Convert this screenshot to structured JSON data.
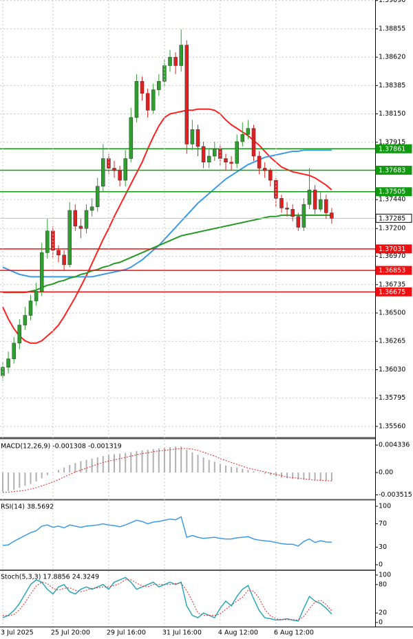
{
  "chart_data": [
    {
      "type": "candlestick",
      "categories": [
        "3 Jul 2025",
        null,
        null,
        null,
        null,
        null,
        null,
        null,
        null,
        "25 Jul 20:00",
        null,
        null,
        null,
        null,
        null,
        null,
        null,
        null,
        null,
        "29 Jul 16:00",
        null,
        null,
        null,
        null,
        null,
        null,
        null,
        null,
        null,
        "31 Jul 16:00",
        null,
        null,
        null,
        null,
        null,
        null,
        null,
        null,
        null,
        "4 Aug 12:00",
        null,
        null,
        null,
        null,
        null,
        null,
        null,
        null,
        null,
        "6 Aug 12:00",
        null,
        null,
        null,
        null,
        null,
        null,
        null,
        null,
        null,
        null
      ],
      "open": [
        1.3598,
        1.3605,
        1.3612,
        1.3625,
        1.364,
        1.3648,
        1.366,
        1.3668,
        1.37,
        1.3718,
        1.3702,
        1.3698,
        1.369,
        1.3735,
        1.3722,
        1.372,
        1.3735,
        1.3738,
        1.3755,
        1.3778,
        1.377,
        1.3768,
        1.376,
        1.3778,
        1.3812,
        1.3842,
        1.3832,
        1.3818,
        1.3835,
        1.3842,
        1.3855,
        1.3862,
        1.3855,
        1.3872,
        1.379,
        1.3802,
        1.3788,
        1.3775,
        1.378,
        1.3786,
        1.3778,
        1.3775,
        1.3774,
        1.3792,
        1.3798,
        1.3803,
        1.378,
        1.377,
        1.3768,
        1.376,
        1.3745,
        1.3737,
        1.3736,
        1.373,
        1.3721,
        1.374,
        1.3752,
        1.3736,
        1.3744,
        1.3733
      ],
      "high": [
        1.361,
        1.3618,
        1.363,
        1.3645,
        1.3655,
        1.3665,
        1.3675,
        1.3708,
        1.3728,
        1.3722,
        1.3706,
        1.3702,
        1.3742,
        1.374,
        1.3728,
        1.374,
        1.3745,
        1.3762,
        1.379,
        1.3782,
        1.3776,
        1.3772,
        1.3785,
        1.382,
        1.3848,
        1.3846,
        1.3836,
        1.384,
        1.3848,
        1.386,
        1.3868,
        1.3866,
        1.3885,
        1.3876,
        1.381,
        1.3806,
        1.3792,
        1.3786,
        1.3792,
        1.379,
        1.3782,
        1.378,
        1.3798,
        1.3808,
        1.381,
        1.3806,
        1.3784,
        1.3775,
        1.377,
        1.3762,
        1.3748,
        1.3742,
        1.374,
        1.3733,
        1.3745,
        1.377,
        1.3756,
        1.375,
        1.3748,
        1.3737
      ],
      "low": [
        1.3594,
        1.36,
        1.3608,
        1.362,
        1.3636,
        1.3644,
        1.3656,
        1.3664,
        1.3695,
        1.3696,
        1.3692,
        1.3685,
        1.3688,
        1.3718,
        1.3712,
        1.3716,
        1.373,
        1.3734,
        1.375,
        1.3765,
        1.3762,
        1.3755,
        1.3755,
        1.3775,
        1.3808,
        1.3826,
        1.3812,
        1.3815,
        1.383,
        1.3838,
        1.385,
        1.3848,
        1.385,
        1.3782,
        1.3785,
        1.378,
        1.377,
        1.377,
        1.3776,
        1.3772,
        1.3768,
        1.3768,
        1.377,
        1.3788,
        1.3794,
        1.3776,
        1.3765,
        1.3762,
        1.3755,
        1.3738,
        1.3733,
        1.373,
        1.3726,
        1.3718,
        1.3718,
        1.3736,
        1.3732,
        1.3734,
        1.3728,
        1.3724
      ],
      "close": [
        1.3605,
        1.3612,
        1.3625,
        1.364,
        1.3648,
        1.366,
        1.3668,
        1.37,
        1.3718,
        1.3702,
        1.3698,
        1.369,
        1.3735,
        1.3722,
        1.372,
        1.3735,
        1.3738,
        1.3755,
        1.3778,
        1.377,
        1.3768,
        1.376,
        1.3778,
        1.3812,
        1.3842,
        1.3832,
        1.3818,
        1.3835,
        1.3842,
        1.3855,
        1.3862,
        1.3855,
        1.3872,
        1.379,
        1.3802,
        1.3788,
        1.3775,
        1.378,
        1.3786,
        1.3778,
        1.3775,
        1.3774,
        1.3792,
        1.3798,
        1.3803,
        1.378,
        1.377,
        1.3768,
        1.376,
        1.3745,
        1.3737,
        1.3736,
        1.373,
        1.3721,
        1.374,
        1.3752,
        1.3736,
        1.3744,
        1.3733,
        1.37285
      ],
      "up_color": "#2e9e2e",
      "down_color": "#e02020",
      "series": [
        {
          "color": "#ff2020",
          "values": [
            1.3655,
            1.3645,
            1.3637,
            1.3631,
            1.3627,
            1.3625,
            1.3625,
            1.3627,
            1.3631,
            1.3635,
            1.364,
            1.3647,
            1.3655,
            1.3663,
            1.3672,
            1.3681,
            1.3691,
            1.3701,
            1.3711,
            1.372,
            1.373,
            1.3739,
            1.3748,
            1.3757,
            1.3766,
            1.3775,
            1.3786,
            1.3796,
            1.3805,
            1.3812,
            1.3815,
            1.3816,
            1.3817,
            1.3818,
            1.3818,
            1.3819,
            1.3819,
            1.3819,
            1.3818,
            1.3815,
            1.381,
            1.3806,
            1.3803,
            1.38,
            1.3797,
            1.3793,
            1.3789,
            1.3784,
            1.3779,
            1.3775,
            1.3771,
            1.3769,
            1.3767,
            1.3766,
            1.3765,
            1.3764,
            1.3762,
            1.3759,
            1.3756,
            1.3752
          ]
        },
        {
          "color": "#3a9ae8",
          "values": [
            1.3688,
            1.3686,
            1.3684,
            1.3682,
            1.3681,
            1.368,
            1.368,
            1.368,
            1.368,
            1.368,
            1.368,
            1.368,
            1.368,
            1.368,
            1.368,
            1.368,
            1.368,
            1.3681,
            1.3682,
            1.3683,
            1.3684,
            1.3685,
            1.3686,
            1.3688,
            1.3691,
            1.3694,
            1.3698,
            1.3702,
            1.3706,
            1.3711,
            1.3716,
            1.3721,
            1.3726,
            1.3731,
            1.3736,
            1.3741,
            1.3745,
            1.3749,
            1.3753,
            1.3757,
            1.3761,
            1.3764,
            1.3767,
            1.377,
            1.3773,
            1.3775,
            1.3777,
            1.3779,
            1.378,
            1.3781,
            1.3782,
            1.3783,
            1.3784,
            1.3784,
            1.3785,
            1.3785,
            1.3785,
            1.3785,
            1.3785,
            1.3785
          ]
        },
        {
          "color": "#229922",
          "values": [
            1.3667,
            1.3667,
            1.3667,
            1.3667,
            1.3667,
            1.3668,
            1.3669,
            1.3671,
            1.3673,
            1.3674,
            1.3676,
            1.3677,
            1.3679,
            1.368,
            1.3682,
            1.3683,
            1.3685,
            1.3686,
            1.3688,
            1.3689,
            1.3691,
            1.3692,
            1.3694,
            1.3696,
            1.3698,
            1.37,
            1.3702,
            1.3704,
            1.3706,
            1.3708,
            1.371,
            1.3712,
            1.3714,
            1.3715,
            1.3716,
            1.3717,
            1.3718,
            1.3719,
            1.372,
            1.3721,
            1.3722,
            1.3723,
            1.3724,
            1.3725,
            1.3726,
            1.3727,
            1.3728,
            1.3729,
            1.373,
            1.373,
            1.3731,
            1.3731,
            1.3731,
            1.3731,
            1.3731,
            1.3731,
            1.3731,
            1.3731,
            1.3731,
            1.3731
          ]
        }
      ],
      "levels": [
        {
          "value": 1.37861,
          "color": "#119911"
        },
        {
          "value": 1.37683,
          "color": "#119911"
        },
        {
          "value": 1.37505,
          "color": "#119911"
        },
        {
          "value": 1.37285,
          "color": "#c0c0c0"
        },
        {
          "value": 1.37031,
          "color": "#ee1111"
        },
        {
          "value": 1.36853,
          "color": "#ee1111"
        },
        {
          "value": 1.36675,
          "color": "#ee1111"
        }
      ],
      "ylim": [
        1.35474,
        1.39094
      ],
      "yticks": [
        {
          "value": 1.3909,
          "label": "1.39090"
        },
        1.38855,
        {
          "value": 1.3862,
          "label": "1.38620"
        },
        1.38385,
        {
          "value": 1.3815,
          "label": "1.38150"
        },
        1.37915,
        {
          "value": 1.3744,
          "label": "1.37440"
        },
        {
          "value": 1.372,
          "label": "1.37200"
        },
        {
          "value": 1.3697,
          "label": "1.36970"
        },
        1.36735,
        {
          "value": 1.365,
          "label": "1.36500"
        },
        1.36265,
        {
          "value": 1.3603,
          "label": "1.36030"
        },
        1.35795,
        {
          "value": 1.3556,
          "label": "1.35560"
        }
      ],
      "grid": true
    },
    {
      "type": "macd",
      "title": "MACD(12,26,9) -0.001308 -0.001319",
      "series": [
        {
          "style": "histogram",
          "color": "#b0b0b0",
          "values": [
            -0.003,
            -0.0029,
            -0.0027,
            -0.0024,
            -0.0021,
            -0.0018,
            -0.0014,
            -0.0009,
            -0.0004,
            0.0,
            0.0004,
            0.0008,
            0.0012,
            0.0015,
            0.0018,
            0.002,
            0.0022,
            0.0024,
            0.0026,
            0.0028,
            0.0029,
            0.003,
            0.0031,
            0.0032,
            0.0034,
            0.0035,
            0.0036,
            0.0037,
            0.0038,
            0.0039,
            0.004,
            0.0041,
            0.0041,
            0.0036,
            0.0032,
            0.0028,
            0.0024,
            0.002,
            0.0017,
            0.0014,
            0.0011,
            0.0009,
            0.0008,
            0.0006,
            0.0004,
            0.0002,
            0.0,
            -0.0002,
            -0.0004,
            -0.0006,
            -0.0008,
            -0.0009,
            -0.001,
            -0.0011,
            -0.0011,
            -0.0011,
            -0.0012,
            -0.0013,
            -0.0013,
            -0.001308
          ]
        },
        {
          "style": "dotted",
          "color": "#ee2222",
          "values": [
            -0.0031,
            -0.0031,
            -0.003,
            -0.0029,
            -0.0028,
            -0.0026,
            -0.0024,
            -0.0021,
            -0.0018,
            -0.0015,
            -0.0011,
            -0.0007,
            -0.0003,
            0.0001,
            0.0004,
            0.0007,
            0.001,
            0.0013,
            0.0016,
            0.0018,
            0.002,
            0.0022,
            0.0024,
            0.0026,
            0.0028,
            0.003,
            0.0031,
            0.0033,
            0.0034,
            0.0035,
            0.0036,
            0.0037,
            0.0038,
            0.0038,
            0.0037,
            0.0035,
            0.0032,
            0.0029,
            0.0026,
            0.0022,
            0.0019,
            0.0016,
            0.0013,
            0.001,
            0.0007,
            0.0005,
            0.0003,
            0.0001,
            -0.0001,
            -0.0003,
            -0.0005,
            -0.0007,
            -0.0008,
            -0.0009,
            -0.001,
            -0.0011,
            -0.0012,
            -0.0012,
            -0.0013,
            -0.001319
          ]
        }
      ],
      "ylim": [
        -0.00412,
        0.0051
      ],
      "yticks": [
        0.004336,
        {
          "value": 0,
          "label": "0.00"
        },
        -0.003515
      ]
    },
    {
      "type": "line",
      "title": "RSI(14) 38.5692",
      "series": [
        {
          "style": "solid",
          "color": "#3a9ae8",
          "values": [
            33,
            34,
            40,
            45,
            50,
            55,
            58,
            66,
            68,
            64,
            66,
            63,
            68,
            66,
            64,
            66,
            67,
            68,
            70,
            68,
            67,
            65,
            68,
            72,
            76,
            74,
            70,
            73,
            74,
            76,
            78,
            77,
            82,
            47,
            50,
            47,
            45,
            46,
            47,
            45,
            44,
            44,
            46,
            47,
            48,
            44,
            42,
            41,
            40,
            38,
            36,
            35,
            35,
            32,
            40,
            44,
            38,
            41,
            39,
            38.5692
          ]
        }
      ],
      "ylim": [
        -8.2,
        109.4
      ],
      "yticks": [
        100,
        70,
        30,
        0
      ]
    },
    {
      "type": "line",
      "title": "Stoch(5,3,3) 17.8856 24.3249",
      "series": [
        {
          "style": "solid",
          "color": "#2aa8b8",
          "values": [
            10,
            15,
            25,
            40,
            60,
            80,
            90,
            85,
            70,
            60,
            75,
            80,
            65,
            60,
            70,
            75,
            70,
            75,
            80,
            70,
            85,
            90,
            95,
            85,
            70,
            75,
            80,
            85,
            75,
            80,
            85,
            80,
            85,
            35,
            15,
            10,
            20,
            15,
            10,
            30,
            45,
            35,
            55,
            70,
            78,
            50,
            25,
            10,
            8,
            5,
            6,
            8,
            5,
            3,
            30,
            55,
            45,
            40,
            30,
            17.8856
          ]
        },
        {
          "style": "dotted",
          "color": "#ee2222",
          "values": [
            15,
            14,
            17,
            27,
            42,
            60,
            77,
            85,
            82,
            72,
            68,
            72,
            73,
            68,
            65,
            68,
            72,
            73,
            75,
            75,
            78,
            82,
            90,
            90,
            83,
            77,
            75,
            80,
            80,
            80,
            80,
            82,
            83,
            67,
            45,
            20,
            15,
            15,
            15,
            18,
            28,
            37,
            45,
            53,
            68,
            66,
            51,
            28,
            14,
            8,
            6,
            6,
            6,
            5,
            13,
            29,
            43,
            47,
            38,
            24.3249
          ]
        }
      ],
      "ylim": [
        -8.7,
        108.7
      ],
      "yticks": [
        100,
        80,
        20,
        0
      ]
    }
  ]
}
